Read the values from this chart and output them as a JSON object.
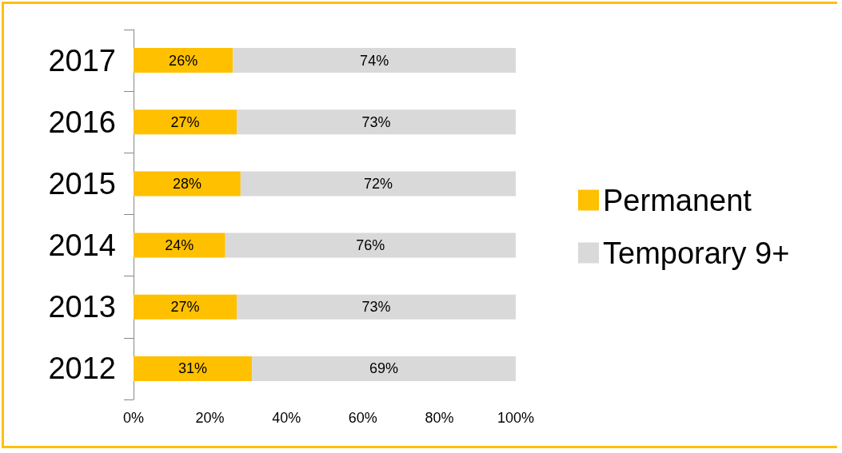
{
  "chart_data": {
    "type": "bar",
    "orientation": "horizontal",
    "stacked": true,
    "categories": [
      "2017",
      "2016",
      "2015",
      "2014",
      "2013",
      "2012"
    ],
    "series": [
      {
        "name": "Permanent",
        "color": "#ffc000",
        "values": [
          26,
          27,
          28,
          24,
          27,
          31
        ],
        "value_labels": [
          "26%",
          "27%",
          "28%",
          "24%",
          "27%",
          "31%"
        ]
      },
      {
        "name": "Temporary 9+",
        "color": "#d9d9d9",
        "values": [
          74,
          73,
          72,
          76,
          73,
          69
        ],
        "value_labels": [
          "74%",
          "73%",
          "72%",
          "76%",
          "73%",
          "69%"
        ]
      }
    ],
    "xlim": [
      0,
      100
    ],
    "xticks": [
      {
        "value": 0,
        "label": "0%"
      },
      {
        "value": 20,
        "label": "20%"
      },
      {
        "value": 40,
        "label": "40%"
      },
      {
        "value": 60,
        "label": "60%"
      },
      {
        "value": 80,
        "label": "80%"
      },
      {
        "value": 100,
        "label": "100%"
      }
    ],
    "grid": false,
    "legend": "right"
  }
}
